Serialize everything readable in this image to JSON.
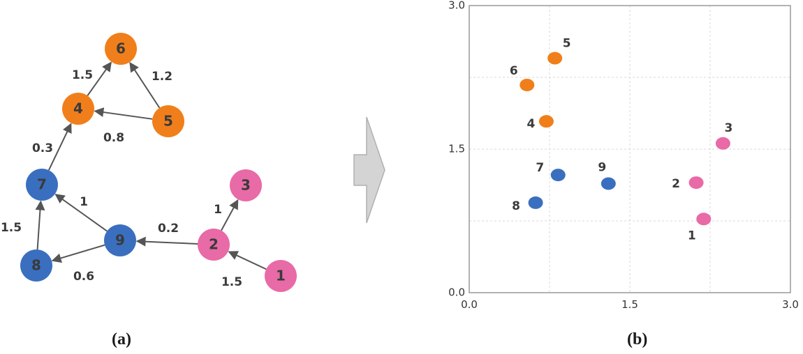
{
  "colors": {
    "orange": "#f07f1b",
    "blue": "#3a6fbf",
    "pink": "#e86aa6",
    "edge": "#555555",
    "arrow_fill": "#d4d4d4",
    "arrow_stroke": "#b0b0b0",
    "grid": "#d8d8d8",
    "axis": "#999999"
  },
  "captions": {
    "a": "(a)",
    "b": "(b)"
  },
  "graph": {
    "nodes": [
      {
        "id": "6",
        "group": "orange"
      },
      {
        "id": "4",
        "group": "orange"
      },
      {
        "id": "5",
        "group": "orange"
      },
      {
        "id": "7",
        "group": "blue"
      },
      {
        "id": "8",
        "group": "blue"
      },
      {
        "id": "9",
        "group": "blue"
      },
      {
        "id": "3",
        "group": "pink"
      },
      {
        "id": "2",
        "group": "pink"
      },
      {
        "id": "1",
        "group": "pink"
      }
    ],
    "edges": [
      {
        "from": "4",
        "to": "6",
        "weight": "1.5"
      },
      {
        "from": "5",
        "to": "6",
        "weight": "1.2"
      },
      {
        "from": "5",
        "to": "4",
        "weight": "0.8"
      },
      {
        "from": "7",
        "to": "4",
        "weight": "0.3"
      },
      {
        "from": "8",
        "to": "7",
        "weight": "1.5"
      },
      {
        "from": "9",
        "to": "7",
        "weight": "1"
      },
      {
        "from": "9",
        "to": "8",
        "weight": "0.6"
      },
      {
        "from": "2",
        "to": "9",
        "weight": "0.2"
      },
      {
        "from": "2",
        "to": "3",
        "weight": "1"
      },
      {
        "from": "1",
        "to": "2",
        "weight": "1.5"
      }
    ]
  },
  "chart_data": {
    "type": "scatter",
    "xlim": [
      0.0,
      3.0
    ],
    "ylim": [
      0.0,
      3.0
    ],
    "x_ticks": [
      "0.0",
      "1.5",
      "3.0"
    ],
    "y_ticks": [
      "0.0",
      "1.5",
      "3.0"
    ],
    "grid": true,
    "points": [
      {
        "label": "5",
        "x": 0.8,
        "y": 2.45,
        "group": "orange"
      },
      {
        "label": "6",
        "x": 0.54,
        "y": 2.17,
        "group": "orange"
      },
      {
        "label": "4",
        "x": 0.72,
        "y": 1.79,
        "group": "orange"
      },
      {
        "label": "3",
        "x": 2.37,
        "y": 1.56,
        "group": "pink"
      },
      {
        "label": "7",
        "x": 0.83,
        "y": 1.23,
        "group": "blue"
      },
      {
        "label": "9",
        "x": 1.3,
        "y": 1.14,
        "group": "blue"
      },
      {
        "label": "2",
        "x": 2.12,
        "y": 1.15,
        "group": "pink"
      },
      {
        "label": "8",
        "x": 0.62,
        "y": 0.94,
        "group": "blue"
      },
      {
        "label": "1",
        "x": 2.19,
        "y": 0.77,
        "group": "pink"
      }
    ]
  }
}
